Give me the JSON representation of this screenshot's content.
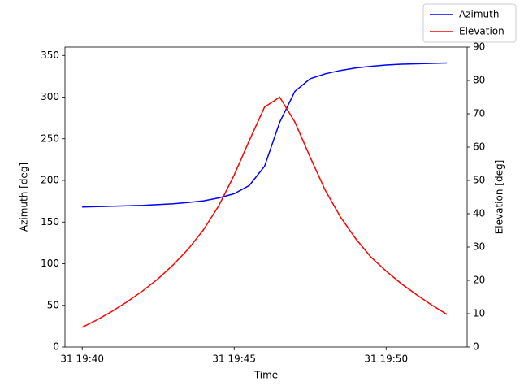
{
  "chart_data": {
    "type": "line",
    "x_label": "Time",
    "y_label": "Azimuth [deg]",
    "y2_label": "Elevation [deg]",
    "x": [
      "31 19:40:00",
      "31 19:40:30",
      "31 19:41:00",
      "31 19:41:30",
      "31 19:42:00",
      "31 19:42:30",
      "31 19:43:00",
      "31 19:43:30",
      "31 19:44:00",
      "31 19:44:30",
      "31 19:45:00",
      "31 19:45:30",
      "31 19:46:00",
      "31 19:46:30",
      "31 19:47:00",
      "31 19:47:30",
      "31 19:48:00",
      "31 19:48:30",
      "31 19:49:00",
      "31 19:49:30",
      "31 19:50:00",
      "31 19:50:30",
      "31 19:51:00",
      "31 19:51:30",
      "31 19:52:00"
    ],
    "series": [
      {
        "name": "Azimuth",
        "color": "#0000ff",
        "axis": "y",
        "values": [
          168,
          168.5,
          169,
          169.5,
          170,
          171,
          172,
          173.5,
          175.5,
          179,
          184,
          194,
          217,
          270,
          307,
          322,
          328,
          332,
          335,
          337,
          338.5,
          339.5,
          340,
          340.5,
          341
        ]
      },
      {
        "name": "Elevation",
        "color": "#ff0000",
        "axis": "y2",
        "values": [
          5.9,
          8.2,
          10.8,
          13.7,
          16.9,
          20.5,
          24.7,
          29.5,
          35.3,
          42.5,
          51.6,
          62,
          72,
          75,
          67.5,
          57,
          47,
          39,
          32.5,
          27,
          22.8,
          19,
          15.7,
          12.6,
          9.8
        ]
      }
    ],
    "xlim": [
      "31 19:39:26",
      "31 19:52:40"
    ],
    "xticks": [
      {
        "value": "31 19:40:00",
        "label": "31 19:40"
      },
      {
        "value": "31 19:45:00",
        "label": "31 19:45"
      },
      {
        "value": "31 19:50:00",
        "label": "31 19:50"
      }
    ],
    "ylim": [
      0,
      360
    ],
    "yticks": [
      0,
      50,
      100,
      150,
      200,
      250,
      300,
      350
    ],
    "y2lim": [
      0,
      90
    ],
    "y2ticks": [
      0,
      10,
      20,
      30,
      40,
      50,
      60,
      70,
      80,
      90
    ],
    "legend": "upper right"
  }
}
